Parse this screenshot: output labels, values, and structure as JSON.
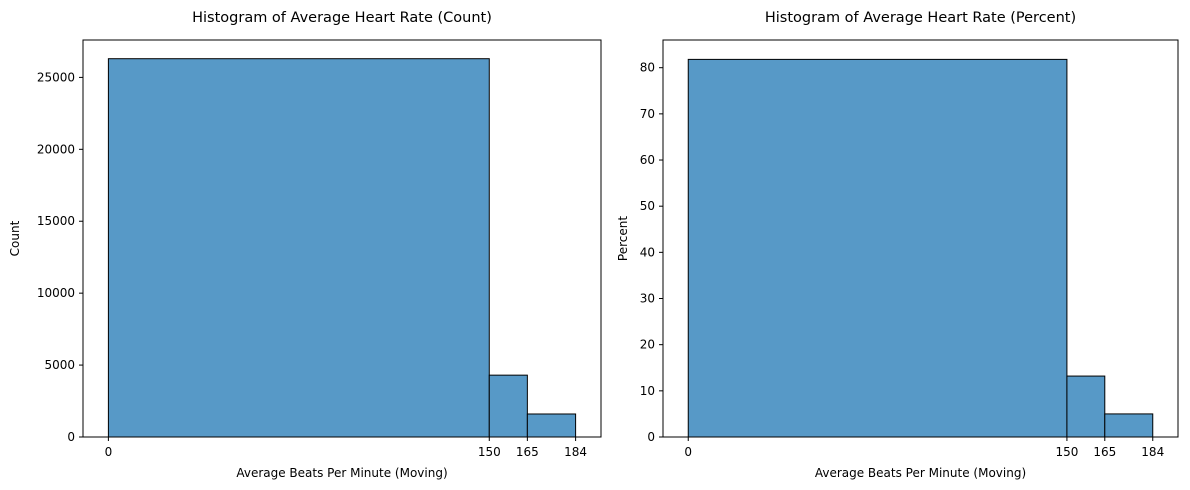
{
  "chart_data": [
    {
      "type": "bar",
      "title": "Histogram of Average Heart Rate (Count)",
      "xlabel": "Average Beats Per Minute (Moving)",
      "ylabel": "Count",
      "bin_edges": [
        0,
        150,
        165,
        184
      ],
      "values": [
        26300,
        4300,
        1600
      ],
      "xlim": [
        -10,
        194
      ],
      "ylim": [
        0,
        27600
      ],
      "xticks": [
        0,
        150,
        165,
        184
      ],
      "yticks": [
        0,
        5000,
        10000,
        15000,
        20000,
        25000
      ],
      "grid": false,
      "bar_color": "#5799c7",
      "edge_color": "#000000"
    },
    {
      "type": "bar",
      "title": "Histogram of Average Heart Rate (Percent)",
      "xlabel": "Average Beats Per Minute (Moving)",
      "ylabel": "Percent",
      "bin_edges": [
        0,
        150,
        165,
        184
      ],
      "values": [
        81.8,
        13.2,
        5.0
      ],
      "xlim": [
        -10,
        194
      ],
      "ylim": [
        0,
        86
      ],
      "xticks": [
        0,
        150,
        165,
        184
      ],
      "yticks": [
        0,
        10,
        20,
        30,
        40,
        50,
        60,
        70,
        80
      ],
      "grid": false,
      "bar_color": "#5799c7",
      "edge_color": "#000000"
    }
  ]
}
